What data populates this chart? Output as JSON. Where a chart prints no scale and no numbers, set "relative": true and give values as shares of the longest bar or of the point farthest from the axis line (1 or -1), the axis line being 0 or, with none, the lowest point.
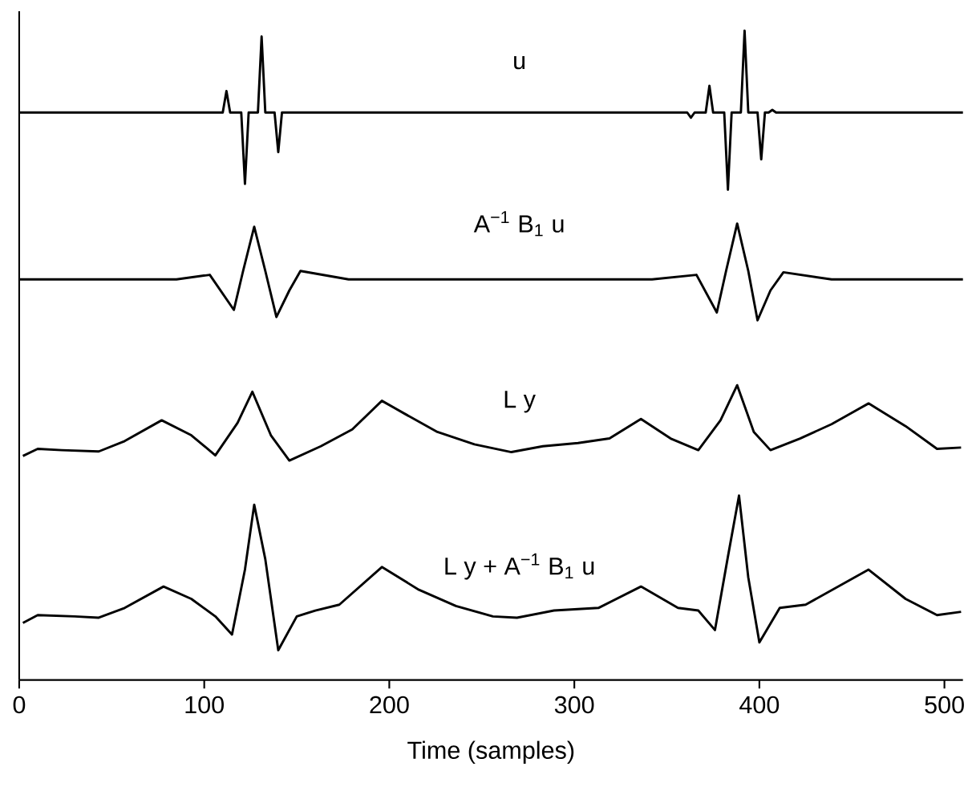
{
  "chart_data": {
    "type": "line",
    "relative": true,
    "xlabel": "Time (samples)",
    "xlim": [
      0,
      510
    ],
    "xticks": [
      0,
      100,
      200,
      300,
      400,
      500
    ],
    "legend": false,
    "grid": false,
    "series": [
      {
        "name": "u",
        "color": "#000000",
        "x": [
          0,
          110,
          112,
          114,
          120,
          122,
          124,
          129,
          131,
          133,
          138,
          140,
          142,
          361,
          363,
          365,
          371,
          373,
          375,
          381,
          383,
          385,
          390,
          392,
          394,
          399,
          401,
          403,
          405,
          407,
          409,
          510
        ],
        "values": [
          0.874,
          0.874,
          0.907,
          0.874,
          0.874,
          0.764,
          0.874,
          0.874,
          0.991,
          0.874,
          0.874,
          0.813,
          0.874,
          0.874,
          0.866,
          0.874,
          0.874,
          0.915,
          0.874,
          0.874,
          0.755,
          0.874,
          0.874,
          1,
          0.874,
          0.874,
          0.802,
          0.874,
          0.874,
          0.878,
          0.874,
          0.874
        ]
      },
      {
        "name": "A$^{−1}$ B$_{1}$ u",
        "color": "#000000",
        "x": [
          0,
          85,
          103,
          116,
          121,
          127,
          133,
          139,
          146,
          152,
          178,
          342,
          366,
          377,
          382,
          388,
          394,
          399,
          406,
          413,
          439,
          510
        ],
        "values": [
          0.617,
          0.617,
          0.624,
          0.57,
          0.63,
          0.698,
          0.63,
          0.559,
          0.6,
          0.63,
          0.617,
          0.617,
          0.624,
          0.566,
          0.63,
          0.703,
          0.63,
          0.554,
          0.6,
          0.628,
          0.617,
          0.617
        ]
      },
      {
        "name": "L y",
        "color": "#000000",
        "x": [
          2,
          10,
          23,
          43,
          57,
          77,
          93,
          106,
          118,
          126,
          136,
          146,
          163,
          180,
          196,
          209,
          226,
          246,
          266,
          283,
          302,
          319,
          336,
          352,
          367,
          379,
          388,
          397,
          406,
          422,
          439,
          459,
          479,
          496,
          509
        ],
        "values": [
          0.345,
          0.356,
          0.354,
          0.352,
          0.368,
          0.4,
          0.377,
          0.346,
          0.396,
          0.444,
          0.377,
          0.338,
          0.36,
          0.386,
          0.43,
          0.409,
          0.382,
          0.363,
          0.351,
          0.36,
          0.365,
          0.372,
          0.402,
          0.372,
          0.354,
          0.4,
          0.454,
          0.382,
          0.354,
          0.372,
          0.394,
          0.426,
          0.391,
          0.356,
          0.358
        ]
      },
      {
        "name": "L y + A$^{−1}$ B$_{1}$ u",
        "color": "#000000",
        "x": [
          2,
          10,
          30,
          43,
          57,
          78,
          93,
          106,
          115,
          122,
          127,
          133,
          140,
          150,
          160,
          173,
          196,
          216,
          236,
          256,
          269,
          289,
          313,
          336,
          356,
          367,
          376,
          383,
          389,
          394,
          400,
          411,
          425,
          459,
          479,
          496,
          509
        ],
        "values": [
          0.088,
          0.1,
          0.098,
          0.096,
          0.111,
          0.144,
          0.125,
          0.098,
          0.07,
          0.17,
          0.27,
          0.186,
          0.046,
          0.098,
          0.107,
          0.116,
          0.174,
          0.139,
          0.114,
          0.098,
          0.096,
          0.107,
          0.111,
          0.144,
          0.111,
          0.107,
          0.077,
          0.19,
          0.284,
          0.158,
          0.058,
          0.111,
          0.116,
          0.17,
          0.125,
          0.1,
          0.105
        ]
      }
    ]
  }
}
